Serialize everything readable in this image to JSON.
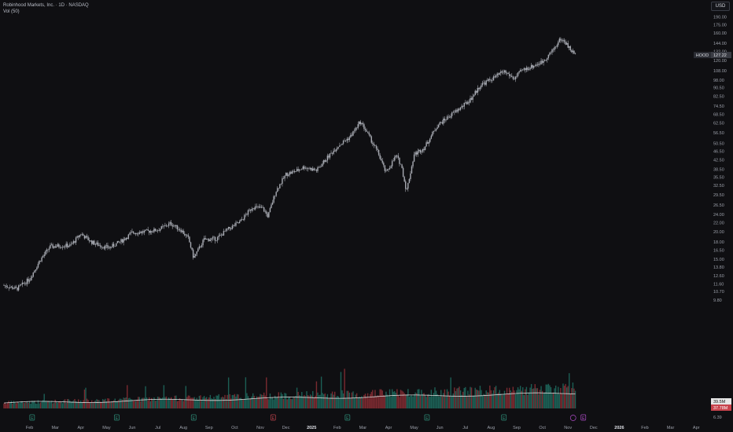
{
  "header": {
    "title": "Robinhood Markets, Inc. · 1D · NASDAQ",
    "volume_label": "Vol (50)",
    "currency": "USD"
  },
  "price_badges": {
    "ticker": "HOOD",
    "last_price": "127.22",
    "volume_ma": "39.5M",
    "volume_last": "37.78M"
  },
  "colors": {
    "background": "#0f0f12",
    "candle": "#a8abb3",
    "volume_up": "#1c5f55",
    "volume_down": "#7a2a30",
    "volume_ma_line": "#d8d8d8",
    "earnings_marker": "#2f8f7a",
    "earnings_marker_down": "#c0434c",
    "upcoming_earnings": "#b04cc9"
  },
  "chart_data": {
    "type": "candlestick",
    "ticker": "HOOD",
    "scale": "log",
    "y_ticks": [
      "190.00",
      "175.00",
      "160.00",
      "144.00",
      "132.00",
      "120.00",
      "108.00",
      "98.00",
      "90.50",
      "82.50",
      "74.50",
      "68.50",
      "62.50",
      "56.50",
      "50.50",
      "46.50",
      "42.50",
      "38.50",
      "35.50",
      "32.50",
      "29.50",
      "26.50",
      "24.00",
      "22.00",
      "20.00",
      "18.00",
      "16.50",
      "15.00",
      "13.80",
      "12.60",
      "11.60",
      "10.70",
      "9.80",
      "6.39"
    ],
    "y_tick_values": [
      190,
      175,
      160,
      144,
      132,
      120,
      108,
      98,
      90.5,
      82.5,
      74.5,
      68.5,
      62.5,
      56.5,
      50.5,
      46.5,
      42.5,
      38.5,
      35.5,
      32.5,
      29.5,
      26.5,
      24,
      22,
      20,
      18,
      16.5,
      15,
      13.8,
      12.6,
      11.6,
      10.7,
      9.8,
      6.39
    ],
    "x_ticks": [
      "Feb",
      "Mar",
      "Apr",
      "May",
      "Jun",
      "Jul",
      "Aug",
      "Sep",
      "Oct",
      "Nov",
      "Dec",
      "2025",
      "Feb",
      "Mar",
      "Apr",
      "May",
      "Jun",
      "Jul",
      "Aug",
      "Sep",
      "Oct",
      "Nov",
      "Dec",
      "2026",
      "Feb",
      "Mar",
      "Apr"
    ],
    "x_tick_months": [
      1,
      2,
      3,
      4,
      5,
      6,
      7,
      8,
      9,
      10,
      11,
      12,
      13,
      14,
      15,
      16,
      17,
      18,
      19,
      20,
      21,
      22,
      23,
      24,
      25,
      26,
      27
    ],
    "price_path": [
      [
        0,
        11.4
      ],
      [
        0.5,
        11.0
      ],
      [
        1.0,
        12.2
      ],
      [
        1.4,
        14.8
      ],
      [
        1.8,
        17.1
      ],
      [
        2.3,
        17.3
      ],
      [
        2.6,
        17.3
      ],
      [
        3.0,
        19.6
      ],
      [
        3.4,
        18.0
      ],
      [
        3.7,
        17.4
      ],
      [
        4.1,
        16.9
      ],
      [
        4.6,
        18.2
      ],
      [
        5.0,
        19.8
      ],
      [
        5.5,
        20.0
      ],
      [
        6.0,
        20.4
      ],
      [
        6.5,
        21.8
      ],
      [
        6.9,
        20.4
      ],
      [
        7.2,
        18.6
      ],
      [
        7.4,
        15.2
      ],
      [
        7.8,
        18.4
      ],
      [
        8.3,
        18.6
      ],
      [
        8.7,
        20.4
      ],
      [
        9.2,
        22.1
      ],
      [
        9.7,
        26.0
      ],
      [
        10.1,
        25.5
      ],
      [
        10.3,
        23.5
      ],
      [
        10.6,
        30.5
      ],
      [
        11.0,
        36.5
      ],
      [
        11.4,
        37.8
      ],
      [
        11.7,
        39.4
      ],
      [
        12.2,
        38.0
      ],
      [
        12.6,
        43.3
      ],
      [
        13.0,
        48.8
      ],
      [
        13.5,
        54.0
      ],
      [
        13.9,
        63.2
      ],
      [
        14.1,
        58.3
      ],
      [
        14.6,
        45.5
      ],
      [
        14.9,
        37.0
      ],
      [
        15.3,
        44.4
      ],
      [
        15.5,
        40.0
      ],
      [
        15.7,
        30.5
      ],
      [
        16.0,
        44.9
      ],
      [
        16.4,
        48.3
      ],
      [
        16.9,
        60.8
      ],
      [
        17.4,
        67.5
      ],
      [
        17.9,
        74.6
      ],
      [
        18.2,
        80.1
      ],
      [
        18.6,
        93.2
      ],
      [
        19.1,
        100.0
      ],
      [
        19.5,
        107.5
      ],
      [
        19.9,
        99.2
      ],
      [
        20.2,
        108.3
      ],
      [
        20.6,
        113.0
      ],
      [
        21.0,
        118.5
      ],
      [
        21.4,
        133.3
      ],
      [
        21.7,
        150.5
      ],
      [
        21.9,
        145.0
      ],
      [
        22.1,
        134.3
      ],
      [
        22.3,
        127.22
      ]
    ],
    "volume_scale_max_m": 220,
    "volume_ma_m": 39.5,
    "volume_last_m": 37.78
  }
}
